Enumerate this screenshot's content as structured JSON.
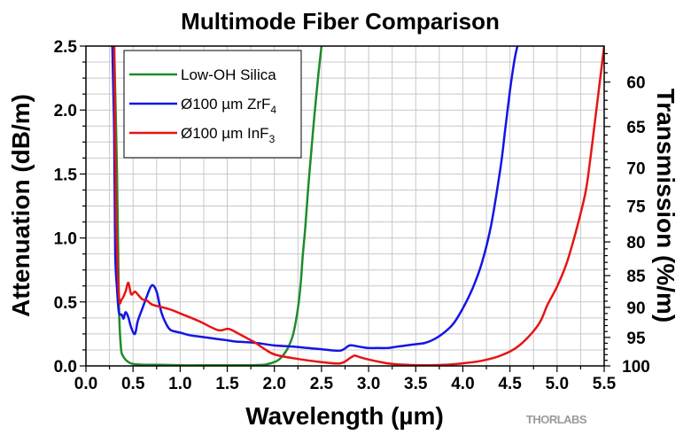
{
  "chart_data": {
    "type": "line",
    "title": "Multimode Fiber Comparison",
    "xlabel": "Wavelength (µm)",
    "ylabel": "Attenuation (dB/m)",
    "y2label": "Transmission (%/m)",
    "xlim": [
      0.0,
      5.5
    ],
    "ylim": [
      0.0,
      2.5
    ],
    "x_ticks": [
      "0.0",
      "0.5",
      "1.0",
      "1.5",
      "2.0",
      "2.5",
      "3.0",
      "3.5",
      "4.0",
      "4.5",
      "5.0",
      "5.5"
    ],
    "y_ticks": [
      "0.0",
      "0.5",
      "1.0",
      "1.5",
      "2.0",
      "2.5"
    ],
    "y2_ticks": [
      "60",
      "65",
      "70",
      "75",
      "80",
      "85",
      "90",
      "95",
      "100"
    ],
    "grid": true,
    "legend_position": "top-left",
    "series": [
      {
        "name_main": "Low-OH Silica",
        "name_sub": "",
        "color": "#1f8c2a",
        "x": [
          0.3,
          0.33,
          0.35,
          0.37,
          0.4,
          0.45,
          0.5,
          0.6,
          0.8,
          1.0,
          1.2,
          1.4,
          1.6,
          1.8,
          1.9,
          2.0,
          2.05,
          2.1,
          2.15,
          2.2,
          2.25,
          2.28,
          2.3,
          2.33,
          2.36,
          2.4,
          2.43,
          2.47,
          2.5
        ],
        "y": [
          2.5,
          1.5,
          0.5,
          0.15,
          0.07,
          0.03,
          0.015,
          0.01,
          0.008,
          0.005,
          0.005,
          0.005,
          0.005,
          0.006,
          0.01,
          0.03,
          0.05,
          0.09,
          0.15,
          0.25,
          0.45,
          0.65,
          0.85,
          1.1,
          1.4,
          1.75,
          2.0,
          2.3,
          2.5
        ]
      },
      {
        "name_main": "Ø100 µm ZrF",
        "name_sub": "4",
        "color": "#1414e6",
        "x": [
          0.28,
          0.3,
          0.31,
          0.33,
          0.35,
          0.38,
          0.4,
          0.42,
          0.45,
          0.48,
          0.52,
          0.55,
          0.6,
          0.65,
          0.7,
          0.75,
          0.8,
          0.85,
          0.9,
          1.0,
          1.1,
          1.2,
          1.3,
          1.4,
          1.5,
          1.6,
          1.8,
          2.0,
          2.2,
          2.5,
          2.7,
          2.8,
          2.9,
          3.0,
          3.1,
          3.2,
          3.3,
          3.4,
          3.5,
          3.6,
          3.7,
          3.8,
          3.9,
          4.0,
          4.1,
          4.2,
          4.3,
          4.4,
          4.45,
          4.5,
          4.55,
          4.58
        ],
        "y": [
          2.5,
          1.8,
          0.9,
          0.6,
          0.42,
          0.4,
          0.37,
          0.42,
          0.38,
          0.3,
          0.25,
          0.35,
          0.45,
          0.55,
          0.63,
          0.58,
          0.42,
          0.33,
          0.28,
          0.26,
          0.24,
          0.23,
          0.22,
          0.21,
          0.2,
          0.19,
          0.18,
          0.16,
          0.15,
          0.13,
          0.12,
          0.16,
          0.15,
          0.14,
          0.14,
          0.14,
          0.15,
          0.16,
          0.17,
          0.18,
          0.21,
          0.26,
          0.33,
          0.45,
          0.6,
          0.8,
          1.1,
          1.55,
          1.85,
          2.15,
          2.4,
          2.5
        ]
      },
      {
        "name_main": "Ø100 µm InF",
        "name_sub": "3",
        "color": "#e61414",
        "x": [
          0.3,
          0.32,
          0.35,
          0.38,
          0.42,
          0.45,
          0.48,
          0.52,
          0.56,
          0.6,
          0.65,
          0.7,
          0.8,
          0.9,
          1.0,
          1.2,
          1.4,
          1.5,
          1.55,
          1.6,
          1.7,
          1.8,
          1.9,
          2.0,
          2.2,
          2.5,
          2.7,
          2.8,
          2.85,
          2.9,
          3.0,
          3.2,
          3.4,
          3.6,
          3.8,
          4.0,
          4.2,
          4.4,
          4.6,
          4.8,
          4.9,
          5.0,
          5.1,
          5.2,
          5.3,
          5.35,
          5.4,
          5.45,
          5.5
        ],
        "y": [
          2.5,
          1.2,
          0.55,
          0.52,
          0.58,
          0.65,
          0.56,
          0.58,
          0.55,
          0.52,
          0.51,
          0.48,
          0.46,
          0.44,
          0.41,
          0.35,
          0.28,
          0.29,
          0.28,
          0.26,
          0.22,
          0.18,
          0.13,
          0.09,
          0.06,
          0.03,
          0.02,
          0.06,
          0.08,
          0.07,
          0.05,
          0.02,
          0.008,
          0.005,
          0.008,
          0.02,
          0.04,
          0.08,
          0.16,
          0.32,
          0.48,
          0.62,
          0.8,
          1.05,
          1.35,
          1.6,
          1.9,
          2.2,
          2.5
        ]
      }
    ],
    "logo": "THORLABS"
  }
}
